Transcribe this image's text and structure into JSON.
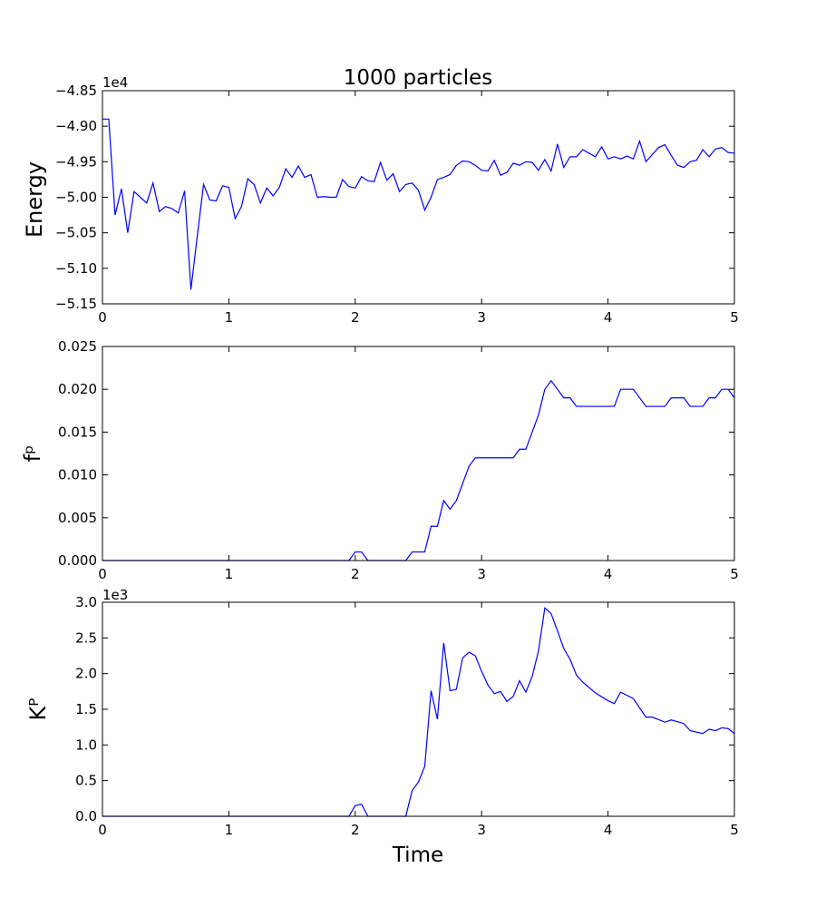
{
  "figure": {
    "title": "1000 particles",
    "xlabel": "Time"
  },
  "chart_data": [
    {
      "type": "line",
      "title": "1000 particles",
      "xlabel": "",
      "ylabel": "Energy",
      "offset_label": "1e4",
      "xlim": [
        0,
        5
      ],
      "ylim": [
        -5.15,
        -4.85
      ],
      "xticks": [
        "0",
        "1",
        "2",
        "3",
        "4",
        "5"
      ],
      "yticks": [
        "−4.85",
        "−4.90",
        "−4.95",
        "−5.00",
        "−5.05",
        "−5.10",
        "−5.15"
      ],
      "ytick_values": [
        -4.85,
        -4.9,
        -4.95,
        -5.0,
        -5.05,
        -5.1,
        -5.15
      ],
      "color": "#0000ff",
      "x": [
        0,
        0.05,
        0.1,
        0.15,
        0.2,
        0.25,
        0.3,
        0.35,
        0.4,
        0.45,
        0.5,
        0.55,
        0.6,
        0.65,
        0.7,
        0.75,
        0.8,
        0.85,
        0.9,
        0.95,
        1.0,
        1.05,
        1.1,
        1.15,
        1.2,
        1.25,
        1.3,
        1.35,
        1.4,
        1.45,
        1.5,
        1.55,
        1.6,
        1.65,
        1.7,
        1.75,
        1.8,
        1.85,
        1.9,
        1.95,
        2.0,
        2.05,
        2.1,
        2.15,
        2.2,
        2.25,
        2.3,
        2.35,
        2.4,
        2.45,
        2.5,
        2.55,
        2.6,
        2.65,
        2.7,
        2.75,
        2.8,
        2.85,
        2.9,
        2.95,
        3.0,
        3.05,
        3.1,
        3.15,
        3.2,
        3.25,
        3.3,
        3.35,
        3.4,
        3.45,
        3.5,
        3.55,
        3.6,
        3.65,
        3.7,
        3.75,
        3.8,
        3.85,
        3.9,
        3.95,
        4.0,
        4.05,
        4.1,
        4.15,
        4.2,
        4.25,
        4.3,
        4.35,
        4.4,
        4.45,
        4.5,
        4.55,
        4.6,
        4.65,
        4.7,
        4.75,
        4.8,
        4.85,
        4.9,
        4.95,
        5.0
      ],
      "values": [
        -4.89,
        -4.89,
        -5.025,
        -4.988,
        -5.05,
        -4.992,
        -5.0,
        -5.008,
        -4.98,
        -5.02,
        -5.013,
        -5.016,
        -5.022,
        -4.991,
        -5.13,
        -5.055,
        -4.982,
        -5.004,
        -5.005,
        -4.984,
        -4.986,
        -5.03,
        -5.013,
        -4.974,
        -4.982,
        -5.008,
        -4.987,
        -4.998,
        -4.986,
        -4.96,
        -4.972,
        -4.956,
        -4.972,
        -4.968,
        -5.0,
        -4.999,
        -5.0,
        -5.0,
        -4.975,
        -4.985,
        -4.987,
        -4.971,
        -4.977,
        -4.978,
        -4.951,
        -4.976,
        -4.967,
        -4.992,
        -4.982,
        -4.98,
        -4.99,
        -5.018,
        -5.0,
        -4.975,
        -4.972,
        -4.968,
        -4.955,
        -4.949,
        -4.95,
        -4.955,
        -4.962,
        -4.963,
        -4.948,
        -4.969,
        -4.965,
        -4.952,
        -4.955,
        -4.95,
        -4.951,
        -4.962,
        -4.947,
        -4.963,
        -4.925,
        -4.958,
        -4.943,
        -4.943,
        -4.933,
        -4.938,
        -4.943,
        -4.929,
        -4.946,
        -4.943,
        -4.946,
        -4.942,
        -4.946,
        -4.921,
        -4.95,
        -4.94,
        -4.93,
        -4.926,
        -4.941,
        -4.955,
        -4.958,
        -4.95,
        -4.948,
        -4.933,
        -4.943,
        -4.932,
        -4.93,
        -4.937,
        -4.938
      ]
    },
    {
      "type": "line",
      "title": "",
      "xlabel": "",
      "ylabel": "fᵖ",
      "offset_label": "",
      "xlim": [
        0,
        5
      ],
      "ylim": [
        0,
        0.025
      ],
      "xticks": [
        "0",
        "1",
        "2",
        "3",
        "4",
        "5"
      ],
      "yticks": [
        "0.025",
        "0.020",
        "0.015",
        "0.010",
        "0.005",
        "0.000"
      ],
      "ytick_values": [
        0.025,
        0.02,
        0.015,
        0.01,
        0.005,
        0.0
      ],
      "color": "#0000ff",
      "x": [
        0,
        1.95,
        2.0,
        2.05,
        2.1,
        2.4,
        2.45,
        2.55,
        2.6,
        2.65,
        2.7,
        2.75,
        2.8,
        2.85,
        2.9,
        2.95,
        3.0,
        3.25,
        3.3,
        3.35,
        3.4,
        3.45,
        3.5,
        3.55,
        3.6,
        3.65,
        3.7,
        3.75,
        3.8,
        4.05,
        4.1,
        4.2,
        4.3,
        4.45,
        4.5,
        4.6,
        4.65,
        4.75,
        4.8,
        4.85,
        4.9,
        4.95,
        5.0
      ],
      "values": [
        0,
        0,
        0.001,
        0.001,
        0,
        0,
        0.001,
        0.001,
        0.004,
        0.004,
        0.007,
        0.006,
        0.007,
        0.009,
        0.011,
        0.012,
        0.012,
        0.012,
        0.013,
        0.013,
        0.015,
        0.017,
        0.02,
        0.021,
        0.02,
        0.019,
        0.019,
        0.018,
        0.018,
        0.018,
        0.02,
        0.02,
        0.018,
        0.018,
        0.019,
        0.019,
        0.018,
        0.018,
        0.019,
        0.019,
        0.02,
        0.02,
        0.019
      ]
    },
    {
      "type": "line",
      "title": "",
      "xlabel": "Time",
      "ylabel": "Kᴾ",
      "offset_label": "1e3",
      "xlim": [
        0,
        5
      ],
      "ylim": [
        0,
        3.0
      ],
      "xticks": [
        "0",
        "1",
        "2",
        "3",
        "4",
        "5"
      ],
      "yticks": [
        "3.0",
        "2.5",
        "2.0",
        "1.5",
        "1.0",
        "0.5",
        "0.0"
      ],
      "ytick_values": [
        3.0,
        2.5,
        2.0,
        1.5,
        1.0,
        0.5,
        0.0
      ],
      "color": "#0000ff",
      "x": [
        0,
        1.95,
        2.0,
        2.05,
        2.1,
        2.4,
        2.45,
        2.5,
        2.55,
        2.6,
        2.65,
        2.7,
        2.75,
        2.8,
        2.85,
        2.9,
        2.95,
        3.0,
        3.05,
        3.1,
        3.15,
        3.2,
        3.25,
        3.3,
        3.35,
        3.4,
        3.45,
        3.5,
        3.55,
        3.6,
        3.65,
        3.7,
        3.75,
        3.8,
        3.9,
        4.0,
        4.05,
        4.1,
        4.2,
        4.3,
        4.35,
        4.45,
        4.5,
        4.6,
        4.65,
        4.75,
        4.8,
        4.85,
        4.9,
        4.95,
        5.0
      ],
      "values": [
        0,
        0,
        0.15,
        0.17,
        0,
        0,
        0.36,
        0.48,
        0.7,
        1.76,
        1.36,
        2.43,
        1.76,
        1.78,
        2.22,
        2.3,
        2.25,
        2.03,
        1.84,
        1.72,
        1.75,
        1.61,
        1.68,
        1.9,
        1.74,
        1.96,
        2.32,
        2.92,
        2.84,
        2.6,
        2.35,
        2.2,
        1.98,
        1.88,
        1.73,
        1.62,
        1.58,
        1.74,
        1.65,
        1.39,
        1.39,
        1.32,
        1.35,
        1.3,
        1.2,
        1.16,
        1.22,
        1.2,
        1.24,
        1.23,
        1.16
      ]
    }
  ]
}
